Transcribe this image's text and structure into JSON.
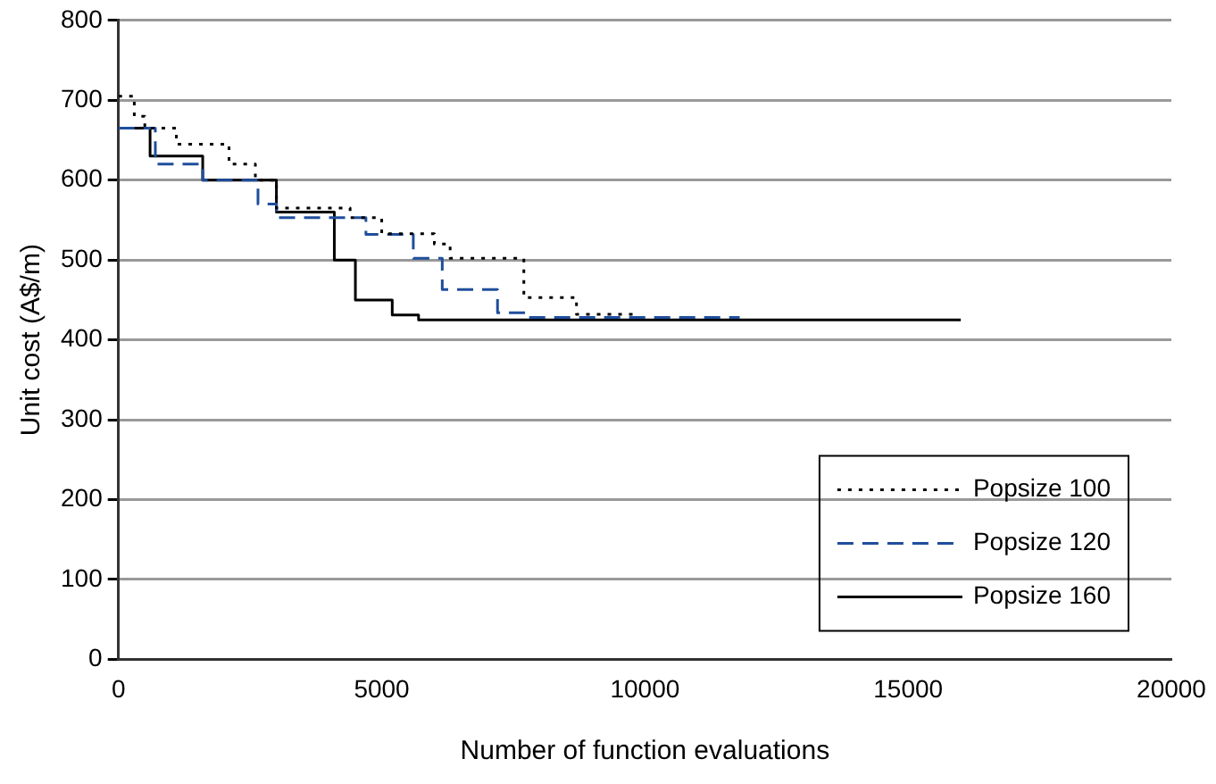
{
  "chart_data": {
    "type": "step",
    "xlabel": "Number of function evaluations",
    "ylabel": "Unit cost (A$/m)",
    "xlim": [
      0,
      20000
    ],
    "xticks": [
      0,
      5000,
      10000,
      15000,
      20000
    ],
    "ylim": [
      0,
      800
    ],
    "yticks": [
      0,
      100,
      200,
      300,
      400,
      500,
      600,
      700,
      800
    ],
    "grid": "y",
    "legend": "bottom right",
    "marker": "none",
    "series": [
      {
        "name": "Popsize 100",
        "color": "#000000",
        "line_style": "dotted",
        "x": [
          0,
          300,
          500,
          1100,
          2100,
          2600,
          3000,
          4400,
          5000,
          6000,
          6300,
          7700,
          8700,
          9800
        ],
        "values": [
          705,
          680,
          665,
          645,
          620,
          600,
          565,
          553,
          533,
          520,
          502,
          453,
          432,
          432
        ]
      },
      {
        "name": "Popsize 120",
        "color": "#1f4e9c",
        "line_style": "dashed",
        "x": [
          0,
          700,
          1600,
          2650,
          3000,
          4700,
          5600,
          6150,
          7200,
          7800,
          11800
        ],
        "values": [
          665,
          620,
          600,
          570,
          553,
          532,
          502,
          463,
          434,
          428,
          428
        ]
      },
      {
        "name": "Popsize 160",
        "color": "#000000",
        "line_style": "solid",
        "x": [
          0,
          600,
          1600,
          3000,
          4100,
          4500,
          5200,
          5700,
          16000
        ],
        "values": [
          665,
          630,
          600,
          560,
          500,
          450,
          431,
          425,
          425
        ]
      }
    ]
  }
}
